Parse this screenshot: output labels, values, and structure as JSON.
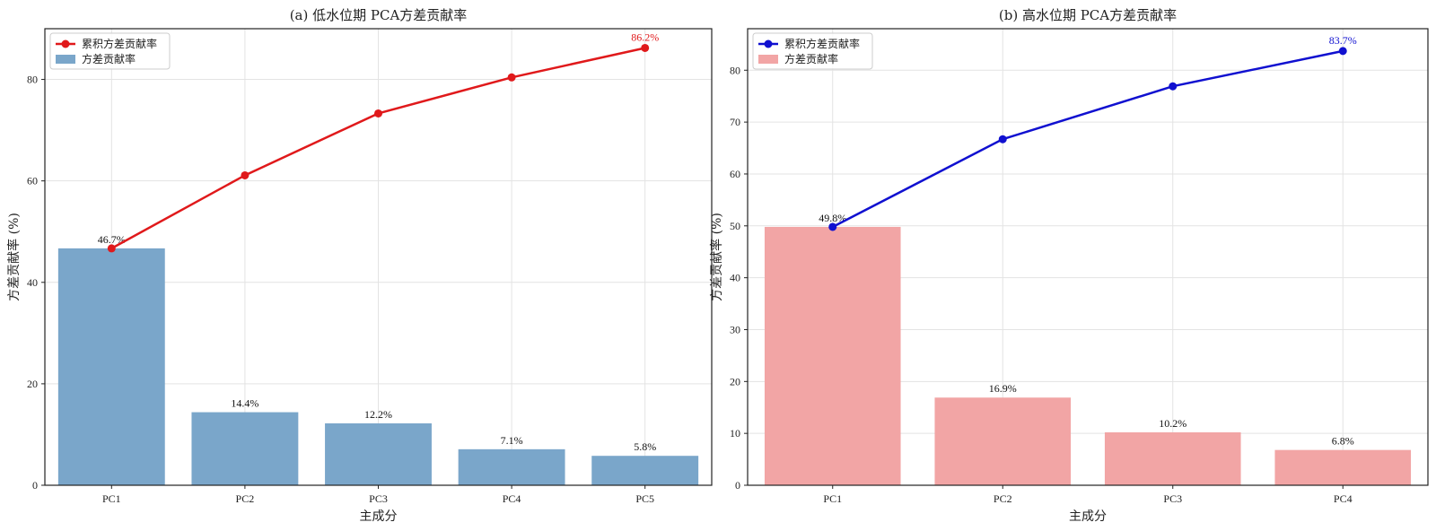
{
  "chart_data": [
    {
      "type": "bar",
      "title": "(a) 低水位期 PCA方差贡献率",
      "xlabel": "主成分",
      "ylabel": "方差贡献率 (%)",
      "categories": [
        "PC1",
        "PC2",
        "PC3",
        "PC4",
        "PC5"
      ],
      "ylim": [
        0,
        90
      ],
      "yticks": [
        0,
        20,
        40,
        60,
        80
      ],
      "grid": true,
      "legend_position": "top-left",
      "series": [
        {
          "name": "方差贡献率",
          "kind": "bar",
          "color": "#7aa6ca",
          "values": [
            46.7,
            14.4,
            12.2,
            7.1,
            5.8
          ],
          "labels": [
            "46.7%",
            "14.4%",
            "12.2%",
            "7.1%",
            "5.8%"
          ]
        },
        {
          "name": "累积方差贡献率",
          "kind": "line",
          "color": "#e0191b",
          "values": [
            46.7,
            61.1,
            73.3,
            80.4,
            86.2
          ],
          "end_label": "86.2%"
        }
      ]
    },
    {
      "type": "bar",
      "title": "(b) 高水位期 PCA方差贡献率",
      "xlabel": "主成分",
      "ylabel": "方差贡献率 (%)",
      "categories": [
        "PC1",
        "PC2",
        "PC3",
        "PC4"
      ],
      "ylim": [
        0,
        88
      ],
      "yticks": [
        0,
        10,
        20,
        30,
        40,
        50,
        60,
        70,
        80
      ],
      "grid": true,
      "legend_position": "top-left",
      "series": [
        {
          "name": "方差贡献率",
          "kind": "bar",
          "color": "#f2a5a5",
          "values": [
            49.8,
            16.9,
            10.2,
            6.8
          ],
          "labels": [
            "49.8%",
            "16.9%",
            "10.2%",
            "6.8%"
          ]
        },
        {
          "name": "累积方差贡献率",
          "kind": "line",
          "color": "#1010d0",
          "values": [
            49.8,
            66.7,
            76.9,
            83.7
          ],
          "end_label": "83.7%"
        }
      ]
    }
  ]
}
